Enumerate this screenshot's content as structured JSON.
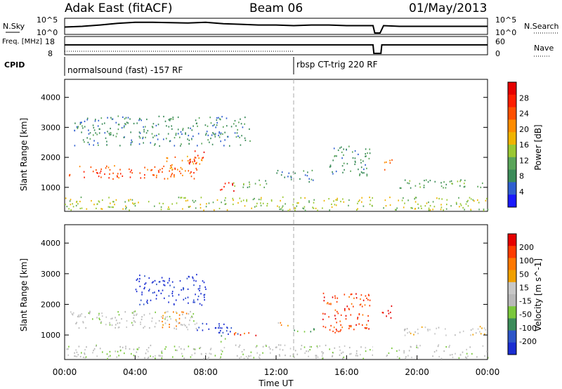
{
  "header": {
    "title": "Adak East (fitACF)",
    "beam": "Beam 06",
    "date": "01/May/2013"
  },
  "colors": {
    "power": [
      "#1a1aff",
      "#2f5fd0",
      "#3c8c5a",
      "#5aa55a",
      "#9ac832",
      "#f0b400",
      "#ff8c00",
      "#ff5000",
      "#ff1e00",
      "#e60000"
    ],
    "velocity": [
      "#1a2dd2",
      "#2d55c8",
      "#3c8c5a",
      "#7ac83c",
      "#b9b9b9",
      "#c8c8c8",
      "#f0a000",
      "#ff7800",
      "#ff3c00",
      "#e60000"
    ]
  },
  "chart_data": [
    {
      "type": "line",
      "panel": "noise",
      "left_label_top": "N.Sky",
      "right_label": "N.Search",
      "ticks_left": [
        "10^5",
        "10^0"
      ],
      "ticks_right": [
        "10^5",
        "10^0"
      ],
      "x_hours": [
        0,
        1,
        2,
        3,
        4,
        5,
        6,
        7,
        8,
        9,
        10,
        11,
        12,
        13,
        14,
        15,
        16,
        17,
        17.5,
        17.6,
        17.9,
        18.1,
        19,
        20,
        21,
        22,
        23,
        24
      ],
      "y_frac": [
        0.45,
        0.5,
        0.6,
        0.72,
        0.8,
        0.8,
        0.78,
        0.75,
        0.8,
        0.7,
        0.65,
        0.6,
        0.6,
        0.55,
        0.6,
        0.6,
        0.55,
        0.55,
        0.55,
        0.0,
        0.0,
        0.55,
        0.5,
        0.5,
        0.5,
        0.5,
        0.5,
        0.5
      ]
    },
    {
      "type": "line",
      "panel": "frequency",
      "left_label": "Freq. [MHz]",
      "right_label": "Nave",
      "left_label_bottom": "CPID",
      "ticks_left": [
        "18",
        "8"
      ],
      "ticks_right": [
        "60",
        "0"
      ],
      "x_hours": [
        0,
        13,
        13.05,
        17.5,
        17.55,
        17.95,
        18.0,
        24
      ],
      "y_frac": [
        0.55,
        0.55,
        0.55,
        0.55,
        0.0,
        0.0,
        0.55,
        0.55
      ]
    },
    {
      "type": "text",
      "panel": "cpid",
      "labels": [
        {
          "x": 0.2,
          "text": "normalsound (fast) -157 RF"
        },
        {
          "x": 13.1,
          "text": "rbsp CT-trig 220 RF"
        }
      ],
      "boundary_hours": 13
    },
    {
      "type": "heatmap",
      "panel": "power",
      "ylabel": "Slant Range [km]",
      "ylim": [
        200,
        4600
      ],
      "yticks": [
        1000,
        2000,
        3000,
        4000
      ],
      "xlim": [
        0,
        24
      ],
      "colorbar_label": "Power [dB]",
      "colorbar_ticks": [
        "28",
        "24",
        "20",
        "16",
        "12",
        "8",
        "4"
      ],
      "colorbar_range": [
        0,
        32
      ],
      "blobs": [
        {
          "x0": 0.2,
          "x1": 7.5,
          "y0": 1300,
          "y1": 1750,
          "level": 7
        },
        {
          "x0": 5.5,
          "x1": 7.8,
          "y0": 1600,
          "y1": 2100,
          "level": 6
        },
        {
          "x0": 7.0,
          "x1": 7.9,
          "y0": 1800,
          "y1": 2300,
          "level": 8
        },
        {
          "x0": 8.8,
          "x1": 9.8,
          "y0": 900,
          "y1": 1200,
          "level": 9
        },
        {
          "x0": 9.5,
          "x1": 11.5,
          "y0": 1000,
          "y1": 1300,
          "level": 3
        },
        {
          "x0": 12.0,
          "x1": 14.2,
          "y0": 1200,
          "y1": 1600,
          "level": 2
        },
        {
          "x0": 15.0,
          "x1": 17.3,
          "y0": 1400,
          "y1": 2400,
          "level": 2
        },
        {
          "x0": 18.0,
          "x1": 18.6,
          "y0": 1600,
          "y1": 2000,
          "level": 6
        },
        {
          "x0": 19.0,
          "x1": 24,
          "y0": 1000,
          "y1": 1300,
          "level": 3
        },
        {
          "x0": 0.5,
          "x1": 10.5,
          "y0": 2400,
          "y1": 3400,
          "level": 2
        },
        {
          "x0": 0,
          "x1": 24,
          "y0": 250,
          "y1": 700,
          "level": 4
        }
      ],
      "gap_hours": [
        17.5,
        18.0
      ]
    },
    {
      "type": "heatmap",
      "panel": "velocity",
      "ylabel": "Slant Range [km]",
      "xlabel": "Time UT",
      "ylim": [
        200,
        4600
      ],
      "yticks": [
        1000,
        2000,
        3000,
        4000
      ],
      "xlim": [
        0,
        24
      ],
      "xticks": [
        "00:00",
        "04:00",
        "08:00",
        "12:00",
        "16:00",
        "20:00",
        "00:00"
      ],
      "colorbar_label": "Velocity [m s^-1]",
      "colorbar_ticks": [
        "200",
        "100",
        "50",
        "15",
        "-15",
        "-50",
        "-100",
        "-200"
      ],
      "colorbar_range": [
        -250,
        250
      ],
      "blobs": [
        {
          "x0": 0.2,
          "x1": 7.5,
          "y0": 1200,
          "y1": 1800,
          "level": 4
        },
        {
          "x0": 5.5,
          "x1": 7.0,
          "y0": 1200,
          "y1": 1800,
          "level": 6
        },
        {
          "x0": 7.3,
          "x1": 9.8,
          "y0": 1000,
          "y1": 1400,
          "level": 0
        },
        {
          "x0": 8.8,
          "x1": 9.5,
          "y0": 800,
          "y1": 1000,
          "level": 3
        },
        {
          "x0": 9.6,
          "x1": 10.9,
          "y0": 950,
          "y1": 1150,
          "level": 8
        },
        {
          "x0": 4.0,
          "x1": 8.0,
          "y0": 2000,
          "y1": 3000,
          "level": 0
        },
        {
          "x0": 12.0,
          "x1": 12.8,
          "y0": 1300,
          "y1": 1500,
          "level": 6
        },
        {
          "x0": 12.8,
          "x1": 14.2,
          "y0": 1100,
          "y1": 1300,
          "level": 3
        },
        {
          "x0": 14.5,
          "x1": 17.3,
          "y0": 1100,
          "y1": 2400,
          "level": 8
        },
        {
          "x0": 18.0,
          "x1": 18.6,
          "y0": 1500,
          "y1": 2000,
          "level": 9
        },
        {
          "x0": 19.0,
          "x1": 24,
          "y0": 1000,
          "y1": 1300,
          "level": 5
        },
        {
          "x0": 0,
          "x1": 24,
          "y0": 250,
          "y1": 700,
          "level": 4
        }
      ],
      "gap_hours": [
        17.5,
        18.0
      ]
    }
  ]
}
